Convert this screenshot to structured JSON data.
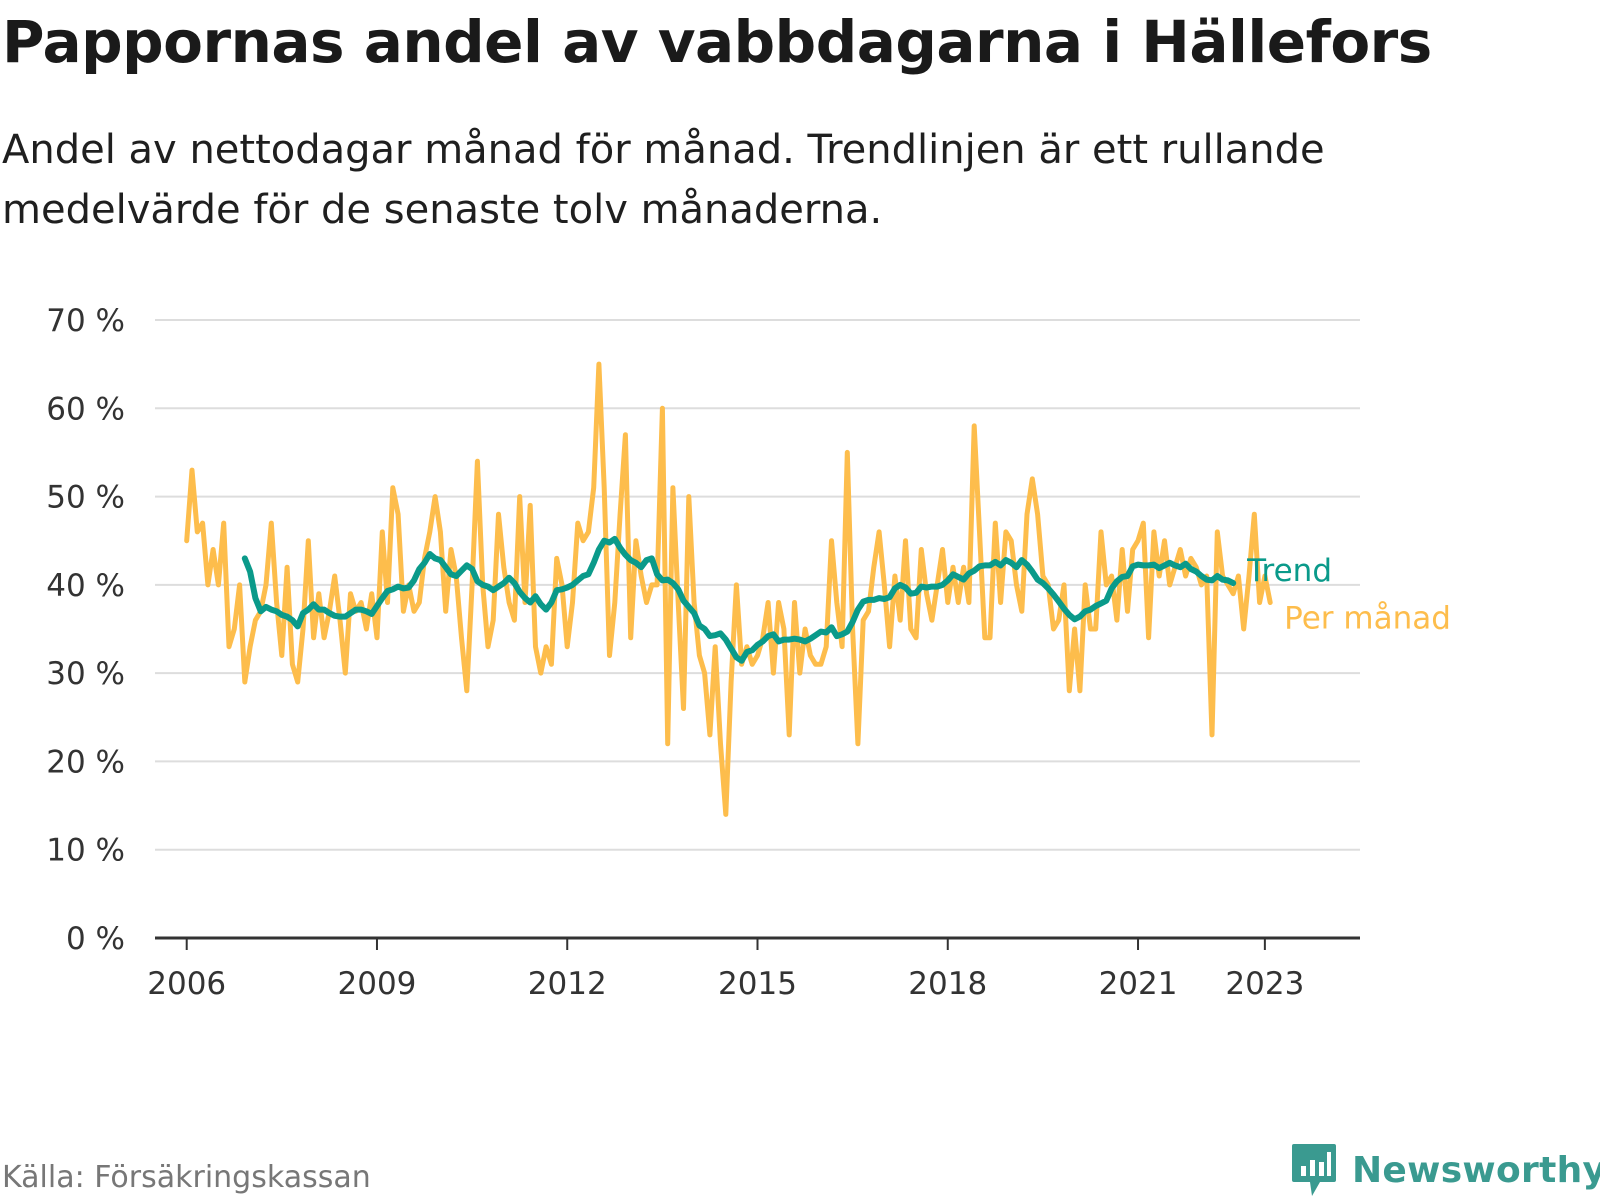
{
  "title": "Pappornas andel av vabbdagarna i Hällefors",
  "subtitle": "Andel av nettodagar månad för månad. Trendlinjen är ett rullande medelvärde för de senaste tolv månaderna.",
  "source": "Källa: Försäkringskassan",
  "brand": {
    "name": "Newsworthy",
    "icon": "newsworthy-chart-bubble-icon",
    "color": "#3a9a90"
  },
  "chart_data": {
    "type": "line",
    "title": "Pappornas andel av vabbdagarna i Hällefors",
    "ylabel": "",
    "xlabel": "",
    "ylim": [
      0,
      70
    ],
    "yticks": [
      0,
      10,
      20,
      30,
      40,
      50,
      60,
      70
    ],
    "ytick_labels": [
      "0 %",
      "10 %",
      "20 %",
      "30 %",
      "40 %",
      "50 %",
      "60 %",
      "70 %"
    ],
    "xlim": [
      2005.5,
      2024.5
    ],
    "xticks": [
      2006,
      2009,
      2012,
      2015,
      2018,
      2021,
      2023
    ],
    "xtick_labels": [
      "2006",
      "2009",
      "2012",
      "2015",
      "2018",
      "2021",
      "2023"
    ],
    "grid": "horizontal",
    "legend": "direct-labels-right",
    "series": [
      {
        "name": "Per månad",
        "color": "#fdbd4c",
        "x_start": 2006.0,
        "x_step": 0.0833333,
        "values": [
          45,
          53,
          46,
          47,
          40,
          44,
          40,
          47,
          33,
          35,
          40,
          29,
          33,
          36,
          37,
          40,
          47,
          38,
          32,
          42,
          31,
          29,
          35,
          45,
          34,
          39,
          34,
          37,
          41,
          36,
          30,
          39,
          37,
          38,
          35,
          39,
          34,
          46,
          38,
          51,
          48,
          37,
          40,
          37,
          38,
          43,
          46,
          50,
          46,
          37,
          44,
          41,
          34,
          28,
          40,
          54,
          40,
          33,
          36,
          48,
          42,
          38,
          36,
          50,
          38,
          49,
          33,
          30,
          33,
          31,
          43,
          40,
          33,
          38,
          47,
          45,
          46,
          51,
          65,
          51,
          32,
          38,
          48,
          57,
          34,
          45,
          41,
          38,
          40,
          40,
          60,
          22,
          51,
          38,
          26,
          50,
          38,
          32,
          30,
          23,
          33,
          22,
          14,
          29,
          40,
          31,
          33,
          31,
          32,
          34,
          38,
          30,
          38,
          35,
          23,
          38,
          30,
          35,
          32,
          31,
          31,
          33,
          45,
          38,
          33,
          55,
          35,
          22,
          36,
          37,
          42,
          46,
          40,
          33,
          41,
          36,
          45,
          35,
          34,
          44,
          39,
          36,
          40,
          44,
          38,
          42,
          38,
          42,
          38,
          58,
          46,
          34,
          34,
          47,
          38,
          46,
          45,
          40,
          37,
          48,
          52,
          48,
          41,
          40,
          35,
          36,
          40,
          28,
          35,
          28,
          40,
          35,
          35,
          46,
          40,
          41,
          36,
          44,
          37,
          44,
          45,
          47,
          34,
          46,
          41,
          45,
          40,
          42,
          44,
          41,
          43,
          42,
          40,
          41,
          23,
          46,
          41,
          40,
          39,
          41,
          35,
          41,
          48,
          38,
          41,
          38
        ]
      },
      {
        "name": "Trend",
        "color": "#0a9a8a",
        "x_start": 2006.9167,
        "x_step": 0.0833333,
        "values": [
          43,
          41.5,
          38.5,
          37,
          37.5,
          37.2,
          37,
          36.6,
          36.4,
          36,
          35.3,
          36.8,
          37.2,
          37.8,
          37.2,
          37.2,
          36.8,
          36.5,
          36.4,
          36.4,
          36.8,
          37.2,
          37.2,
          37,
          36.7,
          37.6,
          38.5,
          39.3,
          39.5,
          39.8,
          39.6,
          39.7,
          40.5,
          41.8,
          42.5,
          43.5,
          43,
          42.8,
          42,
          41.2,
          41,
          41.6,
          42.2,
          41.8,
          40.4,
          40,
          39.8,
          39.4,
          39.8,
          40.2,
          40.8,
          40.2,
          39.2,
          38.5,
          38,
          38.7,
          37.8,
          37.2,
          38,
          39.4,
          39.5,
          39.7,
          40,
          40.5,
          41,
          41.2,
          42.5,
          44,
          45,
          44.8,
          45.2,
          44.2,
          43.4,
          42.8,
          42.5,
          42,
          42.8,
          43,
          41.2,
          40.5,
          40.6,
          40.2,
          39.5,
          38.2,
          37.5,
          36.8,
          35.4,
          35,
          34.2,
          34.3,
          34.5,
          33.8,
          32.8,
          31.8,
          31.4,
          32.4,
          32.6,
          33.2,
          33.6,
          34.2,
          34.4,
          33.6,
          33.8,
          33.8,
          33.9,
          33.8,
          33.6,
          33.9,
          34.3,
          34.7,
          34.6,
          35.2,
          34.2,
          34.4,
          34.7,
          35.8,
          37.2,
          38.1,
          38.3,
          38.3,
          38.5,
          38.4,
          38.6,
          39.6,
          40,
          39.7,
          39,
          39.1,
          39.8,
          39.7,
          39.8,
          39.8,
          40,
          40.5,
          41.2,
          40.9,
          40.6,
          41.3,
          41.6,
          42.1,
          42.2,
          42.2,
          42.6,
          42.2,
          42.8,
          42.5,
          42,
          42.8,
          42.3,
          41.5,
          40.6,
          40.2,
          39.6,
          38.9,
          38.1,
          37.3,
          36.6,
          36.1,
          36.4,
          37,
          37.2,
          37.6,
          37.9,
          38.2,
          39.6,
          40.4,
          40.9,
          41,
          42.1,
          42.3,
          42.2,
          42.2,
          42.3,
          41.9,
          42.2,
          42.5,
          42.2,
          42,
          42.4,
          41.8,
          41.5,
          41,
          40.6,
          40.5,
          41,
          40.6,
          40.5,
          40.2
        ]
      }
    ]
  }
}
